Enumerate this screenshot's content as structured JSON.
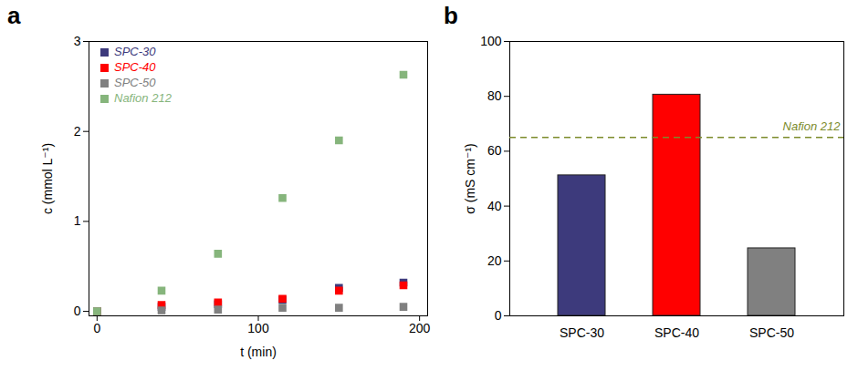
{
  "chart_data": [
    {
      "type": "scatter",
      "title": "a",
      "x_label": "t (min)",
      "y_label": "c (mmol L⁻¹)",
      "x": [
        0,
        40,
        75,
        115,
        150,
        190
      ],
      "series": [
        {
          "name": "SPC-30",
          "color": "#3d3a7c",
          "values": [
            0,
            0.05,
            0.08,
            0.13,
            0.26,
            0.32
          ]
        },
        {
          "name": "SPC-40",
          "color": "#ff0000",
          "values": [
            0,
            0.07,
            0.1,
            0.14,
            0.23,
            0.29
          ]
        },
        {
          "name": "SPC-50",
          "color": "#808080",
          "values": [
            0,
            0.01,
            0.02,
            0.04,
            0.04,
            0.05
          ]
        },
        {
          "name": "Nafion 212",
          "color": "#86b57c",
          "values": [
            0,
            0.23,
            0.64,
            1.26,
            1.9,
            2.63
          ]
        }
      ],
      "xlim": [
        -5,
        205
      ],
      "xticks": [
        0,
        100,
        200
      ],
      "ylim": [
        -0.05,
        3
      ],
      "yticks": [
        0,
        1,
        2,
        3
      ],
      "marker": "square",
      "legend": "upper left"
    },
    {
      "type": "bar",
      "title": "b",
      "y_label": "σ (mS cm⁻¹)",
      "categories": [
        "SPC-30",
        "SPC-40",
        "SPC-50"
      ],
      "values": [
        51.2,
        80.6,
        24.6
      ],
      "colors": [
        "#3d3a7c",
        "#ff0000",
        "#808080"
      ],
      "ylim": [
        0,
        100
      ],
      "yticks": [
        0,
        20,
        40,
        60,
        80,
        100
      ],
      "annotations": [
        {
          "text": "Nafion 212",
          "y": 65,
          "line_style": "dashed",
          "color": "#7c8b2b"
        }
      ]
    }
  ]
}
